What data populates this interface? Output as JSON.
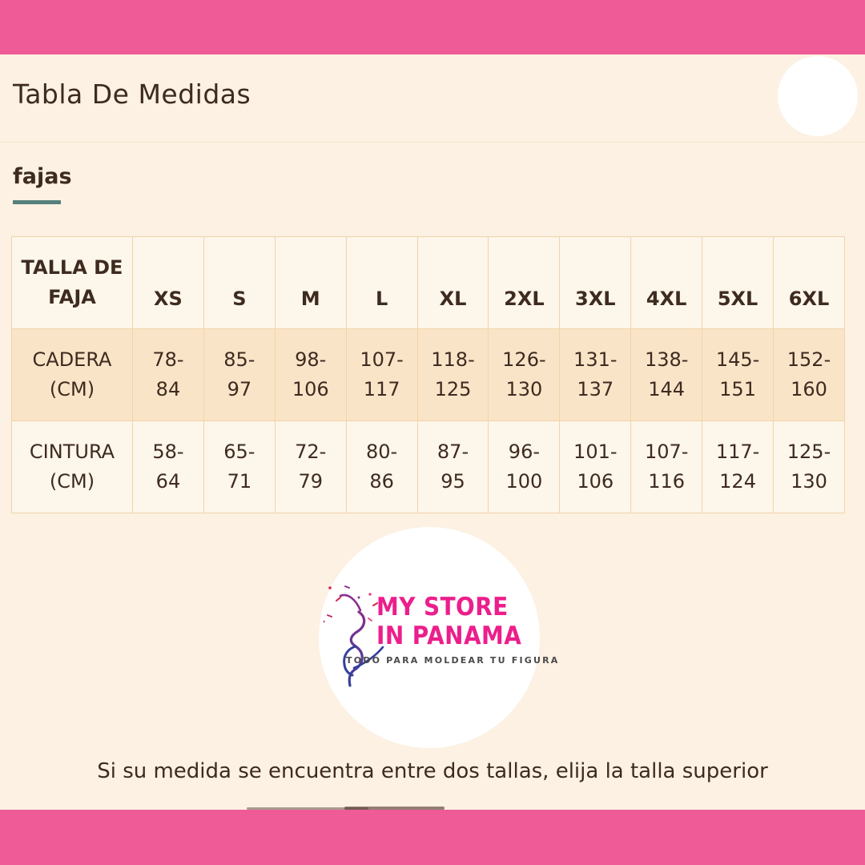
{
  "header": {
    "title": "Tabla De Medidas",
    "section_label": "fajas"
  },
  "size_table": {
    "corner_label": "TALLA DE FAJA",
    "corner_lines": [
      "TALLA DE",
      "FAJA"
    ],
    "sizes": [
      "XS",
      "S",
      "M",
      "L",
      "XL",
      "2XL",
      "3XL",
      "4XL",
      "5XL",
      "6XL"
    ],
    "rows": [
      {
        "label": "CADERA (CM)",
        "label_lines": [
          "CADERA",
          "(CM)"
        ],
        "values": [
          "78-84",
          "85-97",
          "98-106",
          "107-117",
          "118-125",
          "126-130",
          "131-137",
          "138-144",
          "145-151",
          "152-160"
        ]
      },
      {
        "label": "CINTURA (CM)",
        "label_lines": [
          "CINTURA",
          "(CM)"
        ],
        "values": [
          "58-64",
          "65-71",
          "72-79",
          "80-86",
          "87-95",
          "96-100",
          "101-106",
          "107-116",
          "117-124",
          "125-130"
        ]
      }
    ]
  },
  "logo": {
    "name_line1": "MY STORE",
    "name_line2": "IN PANAMA",
    "tagline": "TODO PARA MOLDEAR TU FIGURA"
  },
  "footer": {
    "note": "Si su medida se encuentra entre dos tallas, elija la talla superior"
  },
  "colors": {
    "brand_pink": "#EF5B96",
    "logo_pink": "#EC1E8C",
    "background_cream": "#FCF1E2",
    "cell_light": "#FDF6EA",
    "cell_peach": "#FAE4C8",
    "table_border": "#F1D4A9",
    "text_brown": "#3E2B20",
    "accent_teal": "#55807B",
    "figure_indigo": "#34409B",
    "figure_purple": "#8A2E90",
    "confetti_red": "#D6224C",
    "tagline_gray": "#4A4A4A"
  }
}
